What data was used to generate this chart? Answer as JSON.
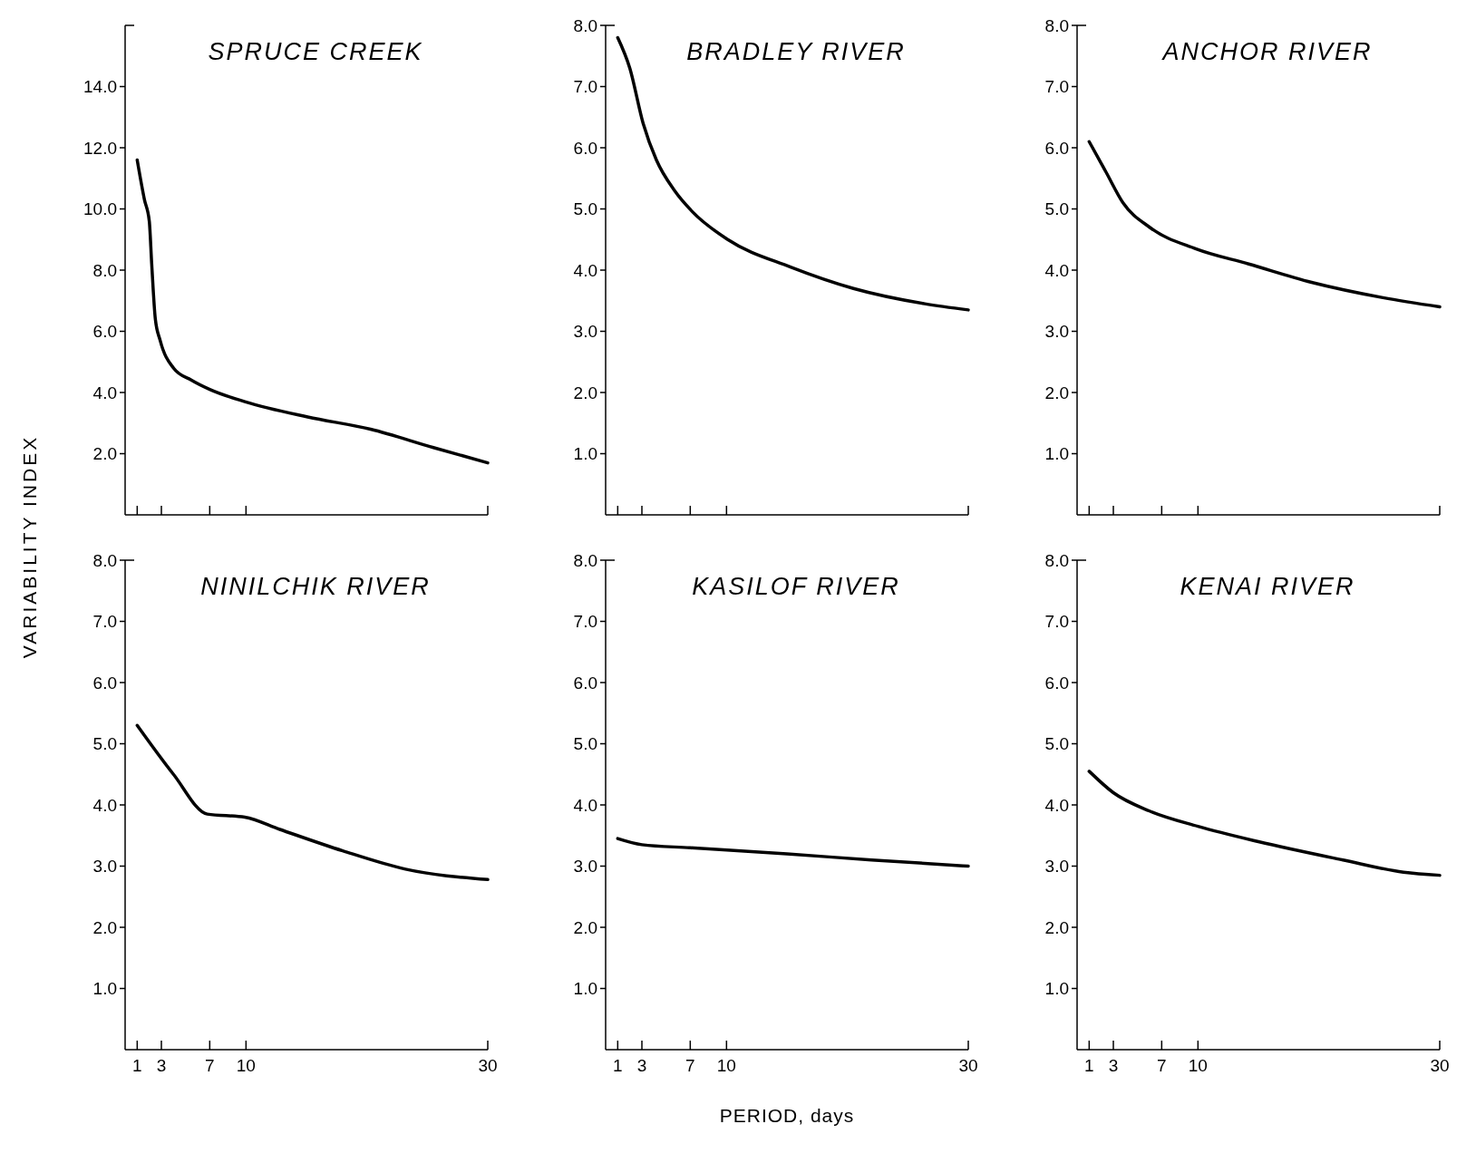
{
  "chart_data": [
    {
      "type": "line",
      "title": "SPRUCE CREEK",
      "ylabel": "VARIABILITY INDEX",
      "xlim": [
        0,
        30
      ],
      "xticks": [
        1,
        3,
        7,
        10,
        30
      ],
      "ylim": [
        0,
        16
      ],
      "yticks": [
        {
          "value": 2,
          "label": "2.0"
        },
        {
          "value": 4,
          "label": "4.0"
        },
        {
          "value": 6,
          "label": "6.0"
        },
        {
          "value": 8,
          "label": "8.0"
        },
        {
          "value": 10,
          "label": "10.0"
        },
        {
          "value": 12,
          "label": "12.0"
        },
        {
          "value": 14,
          "label": "14.0"
        }
      ],
      "tick_labels": "y",
      "grid": false,
      "marker": "none",
      "line_style": "solid",
      "series": [
        {
          "color": "#000000",
          "x": [
            1,
            1.6,
            2,
            2.2,
            2.5,
            2.9,
            4,
            5.5,
            7,
            9.9,
            15.1,
            20.3,
            25.5,
            30
          ],
          "values": [
            11.6,
            10.3,
            9.6,
            8.2,
            6.4,
            5.7,
            4.8,
            4.4,
            4.1,
            3.7,
            3.2,
            2.8,
            2.2,
            1.7
          ]
        }
      ]
    },
    {
      "type": "line",
      "title": "BRADLEY RIVER",
      "xlim": [
        0,
        30
      ],
      "xticks": [
        1,
        3,
        7,
        10,
        30
      ],
      "ylim": [
        0,
        8
      ],
      "yticks": [
        {
          "value": 1,
          "label": "1.0"
        },
        {
          "value": 2,
          "label": "2.0"
        },
        {
          "value": 3,
          "label": "3.0"
        },
        {
          "value": 4,
          "label": "4.0"
        },
        {
          "value": 5,
          "label": "5.0"
        },
        {
          "value": 6,
          "label": "6.0"
        },
        {
          "value": 7,
          "label": "7.0"
        },
        {
          "value": 8,
          "label": "8.0"
        }
      ],
      "tick_labels": "y",
      "grid": false,
      "marker": "none",
      "line_style": "solid",
      "series": [
        {
          "color": "#000000",
          "x": [
            1,
            2,
            3.1,
            4.2,
            5.7,
            7.2,
            10.1,
            15.3,
            20.5,
            26.4,
            30
          ],
          "values": [
            7.8,
            7.3,
            6.4,
            5.8,
            5.3,
            4.95,
            4.5,
            4.05,
            3.7,
            3.45,
            3.35
          ]
        }
      ]
    },
    {
      "type": "line",
      "title": "ANCHOR RIVER",
      "xlim": [
        0,
        30
      ],
      "xticks": [
        1,
        3,
        7,
        10,
        30
      ],
      "ylim": [
        0,
        8
      ],
      "yticks": [
        {
          "value": 1,
          "label": "1.0"
        },
        {
          "value": 2,
          "label": "2.0"
        },
        {
          "value": 3,
          "label": "3.0"
        },
        {
          "value": 4,
          "label": "4.0"
        },
        {
          "value": 5,
          "label": "5.0"
        },
        {
          "value": 6,
          "label": "6.0"
        },
        {
          "value": 7,
          "label": "7.0"
        },
        {
          "value": 8,
          "label": "8.0"
        }
      ],
      "tick_labels": "y",
      "grid": false,
      "marker": "none",
      "line_style": "solid",
      "series": [
        {
          "color": "#000000",
          "x": [
            1,
            2.4,
            3.8,
            6,
            9.8,
            14.2,
            19.4,
            25.3,
            30
          ],
          "values": [
            6.1,
            5.6,
            5.1,
            4.7,
            4.35,
            4.1,
            3.8,
            3.55,
            3.4
          ]
        }
      ]
    },
    {
      "type": "line",
      "title": "NINILCHIK RIVER",
      "xlim": [
        0,
        30
      ],
      "xticks": [
        1,
        3,
        7,
        10,
        30
      ],
      "ylim": [
        0,
        8
      ],
      "yticks": [
        {
          "value": 1,
          "label": "1.0"
        },
        {
          "value": 2,
          "label": "2.0"
        },
        {
          "value": 3,
          "label": "3.0"
        },
        {
          "value": 4,
          "label": "4.0"
        },
        {
          "value": 5,
          "label": "5.0"
        },
        {
          "value": 6,
          "label": "6.0"
        },
        {
          "value": 7,
          "label": "7.0"
        },
        {
          "value": 8,
          "label": "8.0"
        }
      ],
      "grid": false,
      "marker": "none",
      "line_style": "solid",
      "series": [
        {
          "color": "#000000",
          "x": [
            1,
            4,
            6.8,
            9.9,
            12.8,
            18,
            23.2,
            30
          ],
          "values": [
            5.3,
            4.5,
            3.85,
            3.8,
            3.6,
            3.25,
            2.95,
            2.78
          ]
        }
      ]
    },
    {
      "type": "line",
      "title": "KASILOF RIVER",
      "xlabel": "PERIOD, days",
      "xlim": [
        0,
        30
      ],
      "xticks": [
        1,
        3,
        7,
        10,
        30
      ],
      "ylim": [
        0,
        8
      ],
      "yticks": [
        {
          "value": 1,
          "label": "1.0"
        },
        {
          "value": 2,
          "label": "2.0"
        },
        {
          "value": 3,
          "label": "3.0"
        },
        {
          "value": 4,
          "label": "4.0"
        },
        {
          "value": 5,
          "label": "5.0"
        },
        {
          "value": 6,
          "label": "6.0"
        },
        {
          "value": 7,
          "label": "7.0"
        },
        {
          "value": 8,
          "label": "8.0"
        }
      ],
      "grid": false,
      "marker": "none",
      "line_style": "solid",
      "series": [
        {
          "color": "#000000",
          "x": [
            1,
            3,
            7,
            15,
            22,
            30
          ],
          "values": [
            3.45,
            3.35,
            3.3,
            3.2,
            3.1,
            3.0
          ]
        }
      ]
    },
    {
      "type": "line",
      "title": "KENAI RIVER",
      "xlim": [
        0,
        30
      ],
      "xticks": [
        1,
        3,
        7,
        10,
        30
      ],
      "ylim": [
        0,
        8
      ],
      "yticks": [
        {
          "value": 1,
          "label": "1.0"
        },
        {
          "value": 2,
          "label": "2.0"
        },
        {
          "value": 3,
          "label": "3.0"
        },
        {
          "value": 4,
          "label": "4.0"
        },
        {
          "value": 5,
          "label": "5.0"
        },
        {
          "value": 6,
          "label": "6.0"
        },
        {
          "value": 7,
          "label": "7.0"
        },
        {
          "value": 8,
          "label": "8.0"
        }
      ],
      "grid": false,
      "marker": "none",
      "line_style": "solid",
      "series": [
        {
          "color": "#000000",
          "x": [
            1,
            3,
            6,
            10,
            15,
            22,
            27,
            30
          ],
          "values": [
            4.55,
            4.2,
            3.9,
            3.65,
            3.4,
            3.1,
            2.9,
            2.85
          ]
        }
      ]
    }
  ]
}
